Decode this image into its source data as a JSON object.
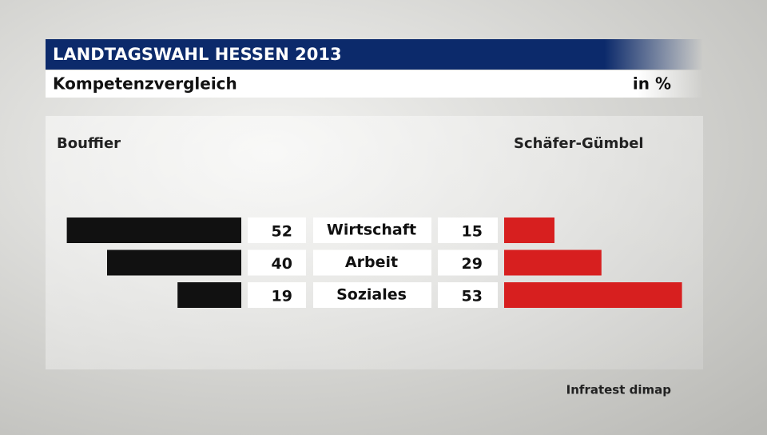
{
  "chart_data": {
    "type": "bar",
    "title": "LANDTAGSWAHL HESSEN 2013",
    "subtitle": "Kompetenzvergleich",
    "unit": "in %",
    "source": "Infratest dimap",
    "categories": [
      "Wirtschaft",
      "Arbeit",
      "Soziales"
    ],
    "series": [
      {
        "name": "Bouffier",
        "color": "#111111",
        "values": [
          52,
          40,
          19
        ]
      },
      {
        "name": "Schäfer-Gümbel",
        "color": "#d71f1f",
        "values": [
          15,
          29,
          53
        ]
      }
    ]
  }
}
